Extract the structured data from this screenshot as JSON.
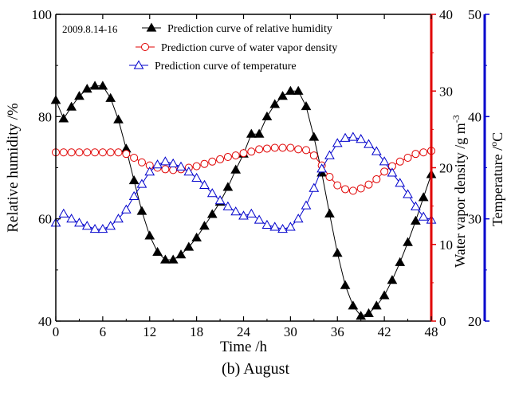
{
  "figure": {
    "caption": "(b) August"
  },
  "chart_data": {
    "type": "line",
    "annotation": "2009.8.14-16",
    "x": [
      0,
      1,
      2,
      3,
      4,
      5,
      6,
      7,
      8,
      9,
      10,
      11,
      12,
      13,
      14,
      15,
      16,
      17,
      18,
      19,
      20,
      21,
      22,
      23,
      24,
      25,
      26,
      27,
      28,
      29,
      30,
      31,
      32,
      33,
      34,
      35,
      36,
      37,
      38,
      39,
      40,
      41,
      42,
      43,
      44,
      45,
      46,
      47,
      48
    ],
    "xlabel": "Time /h",
    "xlim": [
      0,
      48
    ],
    "xticks": [
      0,
      6,
      12,
      18,
      24,
      30,
      36,
      42,
      48
    ],
    "axes": {
      "left": {
        "label": "Relative humidity /%",
        "range": [
          40,
          100
        ],
        "ticks": [
          40,
          60,
          80,
          100
        ],
        "color": "#000000"
      },
      "right1": {
        "label": "Water vapor density",
        "unit": "/g m",
        "unit_sup": "-3",
        "range": [
          0,
          40
        ],
        "ticks": [
          0,
          10,
          20,
          30,
          40
        ],
        "color": "#e00000"
      },
      "right2": {
        "label": "Temperature /",
        "unit": "C",
        "unit_sup": "o",
        "range": [
          20,
          50
        ],
        "ticks": [
          20,
          30,
          40,
          50
        ],
        "color": "#0000cc"
      }
    },
    "legend_position": "top-left",
    "series": [
      {
        "name": "Prediction curve of relative humidity",
        "axis": "left",
        "marker": "filled-triangle",
        "color": "#000000",
        "values": [
          83.2,
          79.6,
          81.9,
          84.0,
          85.4,
          86.0,
          86.0,
          83.6,
          79.4,
          73.7,
          67.5,
          61.5,
          56.7,
          53.5,
          52.0,
          52.0,
          53.0,
          54.5,
          56.3,
          58.6,
          60.9,
          63.3,
          66.2,
          69.6,
          72.7,
          76.6,
          76.6,
          80.0,
          82.4,
          84.0,
          85.0,
          85.0,
          82.0,
          76.0,
          69.0,
          61.0,
          53.3,
          47.0,
          43.0,
          41.0,
          41.5,
          43.0,
          45.0,
          48.0,
          51.5,
          55.4,
          59.6,
          64.2,
          68.7
        ]
      },
      {
        "name": "Prediction curve of water vapor density",
        "axis": "right1",
        "marker": "open-circle",
        "color": "#e00000",
        "values": [
          22.0,
          22.0,
          22.0,
          22.0,
          22.0,
          22.0,
          22.0,
          22.0,
          22.0,
          21.8,
          21.3,
          20.7,
          20.3,
          20.0,
          19.8,
          19.7,
          19.8,
          20.0,
          20.2,
          20.5,
          20.8,
          21.1,
          21.4,
          21.6,
          21.9,
          22.1,
          22.4,
          22.5,
          22.6,
          22.6,
          22.6,
          22.4,
          22.3,
          21.6,
          20.3,
          18.8,
          17.7,
          17.2,
          17.0,
          17.3,
          17.8,
          18.5,
          19.5,
          20.2,
          20.8,
          21.3,
          21.8,
          22.0,
          22.2
        ]
      },
      {
        "name": "Prediction curve of temperature",
        "axis": "right2",
        "marker": "open-triangle",
        "color": "#0000cc",
        "values": [
          29.6,
          30.5,
          30.0,
          29.6,
          29.3,
          29.0,
          29.0,
          29.3,
          30.0,
          30.9,
          32.2,
          33.4,
          34.6,
          35.3,
          35.6,
          35.4,
          35.1,
          34.6,
          34.0,
          33.3,
          32.5,
          31.8,
          31.2,
          30.7,
          30.3,
          30.5,
          29.9,
          29.4,
          29.2,
          29.0,
          29.2,
          30.0,
          31.3,
          33.0,
          34.9,
          36.2,
          37.4,
          37.9,
          38.0,
          37.8,
          37.3,
          36.6,
          35.6,
          34.5,
          33.5,
          32.4,
          31.2,
          30.2,
          29.9
        ]
      }
    ]
  }
}
